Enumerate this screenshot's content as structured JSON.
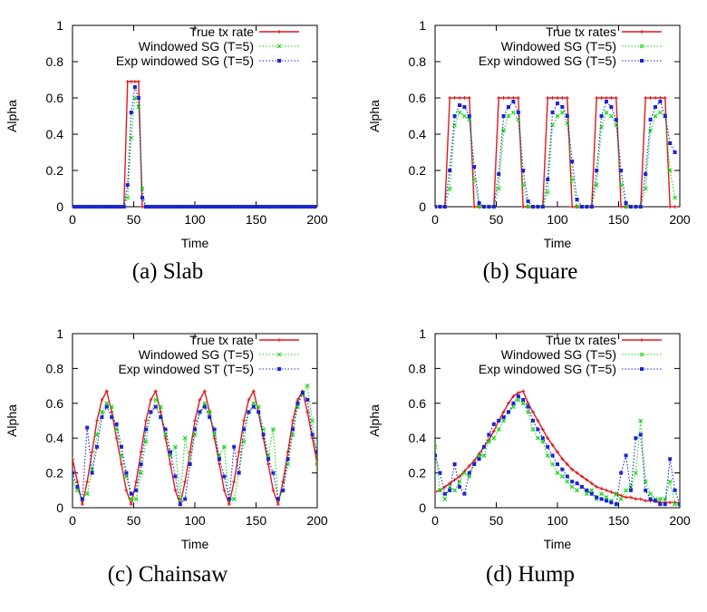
{
  "figure": {
    "captions": [
      "(a) Slab",
      "(b) Square",
      "(c) Chainsaw",
      "(d) Hump"
    ]
  },
  "colors": {
    "true_rate": "#e0181c",
    "windowed_sg": "#11d811",
    "exp_windowed": "#1a24d6"
  },
  "chart_data": [
    {
      "type": "line",
      "caption": "(a) Slab",
      "xlabel": "Time",
      "ylabel": "Alpha",
      "xlim": [
        0,
        200
      ],
      "ylim": [
        0,
        1
      ],
      "xticks": [
        0,
        50,
        100,
        150,
        200
      ],
      "yticks": [
        0,
        0.2,
        0.4,
        0.6,
        0.8,
        1
      ],
      "grid": false,
      "legend_position": "top-right",
      "x": [
        0,
        3,
        6,
        9,
        12,
        15,
        18,
        21,
        24,
        27,
        30,
        33,
        36,
        39,
        42,
        45,
        48,
        51,
        54,
        57,
        60,
        63,
        66,
        69,
        72,
        75,
        78,
        81,
        84,
        87,
        90,
        93,
        96,
        99,
        102,
        105,
        108,
        111,
        114,
        117,
        120,
        123,
        126,
        129,
        132,
        135,
        138,
        141,
        144,
        147,
        150,
        153,
        156,
        159,
        162,
        165,
        168,
        171,
        174,
        177,
        180,
        183,
        186,
        189,
        192,
        195,
        198
      ],
      "series": [
        {
          "name": "True tx rate",
          "marker": "+",
          "style": "solid",
          "values": [
            0,
            0,
            0,
            0,
            0,
            0,
            0,
            0,
            0,
            0,
            0,
            0,
            0,
            0,
            0,
            0.69,
            0.69,
            0.69,
            0.69,
            0,
            0,
            0,
            0,
            0,
            0,
            0,
            0,
            0,
            0,
            0,
            0,
            0,
            0,
            0,
            0,
            0,
            0,
            0,
            0,
            0,
            0,
            0,
            0,
            0,
            0,
            0,
            0,
            0,
            0,
            0,
            0,
            0,
            0,
            0,
            0,
            0,
            0,
            0,
            0,
            0,
            0,
            0,
            0,
            0,
            0,
            0,
            0
          ]
        },
        {
          "name": "Windowed SG (T=5)",
          "marker": "x",
          "style": "dotted",
          "values": [
            0,
            0,
            0,
            0,
            0,
            0,
            0,
            0,
            0,
            0,
            0,
            0,
            0,
            0,
            0,
            0.05,
            0.38,
            0.6,
            0.55,
            0.1,
            0,
            0,
            0,
            0,
            0,
            0,
            0,
            0,
            0,
            0,
            0,
            0,
            0,
            0,
            0,
            0,
            0,
            0,
            0,
            0,
            0,
            0,
            0,
            0,
            0,
            0,
            0,
            0,
            0,
            0,
            0,
            0,
            0,
            0,
            0,
            0,
            0,
            0,
            0,
            0,
            0,
            0,
            0,
            0,
            0,
            0,
            0
          ]
        },
        {
          "name": "Exp windowed SG (T=5)",
          "marker": "square",
          "style": "dotted",
          "values": [
            0,
            0,
            0,
            0,
            0,
            0,
            0,
            0,
            0,
            0,
            0,
            0,
            0,
            0,
            0,
            0.12,
            0.52,
            0.66,
            0.6,
            0.05,
            0,
            0,
            0,
            0,
            0,
            0,
            0,
            0,
            0,
            0,
            0,
            0,
            0,
            0,
            0,
            0,
            0,
            0,
            0,
            0,
            0,
            0,
            0,
            0,
            0,
            0,
            0,
            0,
            0,
            0,
            0,
            0,
            0,
            0,
            0,
            0,
            0,
            0,
            0,
            0,
            0,
            0,
            0,
            0,
            0,
            0,
            0
          ]
        }
      ]
    },
    {
      "type": "line",
      "caption": "(b) Square",
      "xlabel": "Time",
      "ylabel": "Alpha",
      "xlim": [
        0,
        200
      ],
      "ylim": [
        0,
        1
      ],
      "xticks": [
        0,
        50,
        100,
        150,
        200
      ],
      "yticks": [
        0,
        0.2,
        0.4,
        0.6,
        0.8,
        1
      ],
      "grid": false,
      "legend_position": "top-right",
      "x": [
        0,
        4,
        8,
        12,
        16,
        20,
        24,
        28,
        32,
        36,
        40,
        44,
        48,
        52,
        56,
        60,
        64,
        68,
        72,
        76,
        80,
        84,
        88,
        92,
        96,
        100,
        104,
        108,
        112,
        116,
        120,
        124,
        128,
        132,
        136,
        140,
        144,
        148,
        152,
        156,
        160,
        164,
        168,
        172,
        176,
        180,
        184,
        188,
        192,
        196
      ],
      "series": [
        {
          "name": "True tx rates",
          "marker": "+",
          "style": "solid",
          "values": [
            0,
            0,
            0,
            0.6,
            0.6,
            0.6,
            0.6,
            0.6,
            0,
            0,
            0,
            0,
            0,
            0.6,
            0.6,
            0.6,
            0.6,
            0.6,
            0,
            0,
            0,
            0,
            0,
            0.6,
            0.6,
            0.6,
            0.6,
            0.6,
            0,
            0,
            0,
            0,
            0,
            0.6,
            0.6,
            0.6,
            0.6,
            0.6,
            0,
            0,
            0,
            0,
            0,
            0.6,
            0.6,
            0.6,
            0.6,
            0.6,
            0,
            0
          ]
        },
        {
          "name": "Windowed SG (T=5)",
          "marker": "x",
          "style": "dotted",
          "values": [
            0,
            0,
            0,
            0.1,
            0.45,
            0.52,
            0.5,
            0.48,
            0.15,
            0,
            0,
            0,
            0,
            0.1,
            0.42,
            0.5,
            0.52,
            0.48,
            0.12,
            0,
            0,
            0,
            0,
            0.08,
            0.45,
            0.5,
            0.52,
            0.46,
            0.15,
            0,
            0,
            0,
            0,
            0.12,
            0.44,
            0.52,
            0.5,
            0.45,
            0.12,
            0,
            0,
            0,
            0,
            0.1,
            0.42,
            0.5,
            0.52,
            0.5,
            0.2,
            0.05
          ]
        },
        {
          "name": "Exp windowed SG (T=5)",
          "marker": "square",
          "style": "dotted",
          "values": [
            0,
            0,
            0,
            0.2,
            0.5,
            0.56,
            0.55,
            0.5,
            0.22,
            0.02,
            0,
            0,
            0,
            0.18,
            0.5,
            0.55,
            0.58,
            0.52,
            0.2,
            0.03,
            0,
            0,
            0,
            0.15,
            0.52,
            0.57,
            0.55,
            0.5,
            0.25,
            0.04,
            0,
            0,
            0,
            0.2,
            0.5,
            0.58,
            0.55,
            0.48,
            0.2,
            0.02,
            0,
            0,
            0,
            0.18,
            0.48,
            0.55,
            0.58,
            0.5,
            0.35,
            0.3
          ]
        }
      ]
    },
    {
      "type": "line",
      "caption": "(c) Chainsaw",
      "xlabel": "Time",
      "ylabel": "Alpha",
      "xlim": [
        0,
        200
      ],
      "ylim": [
        0,
        1
      ],
      "xticks": [
        0,
        50,
        100,
        150,
        200
      ],
      "yticks": [
        0,
        0.2,
        0.4,
        0.6,
        0.8,
        1
      ],
      "grid": false,
      "legend_position": "top-right",
      "x": [
        0,
        4,
        8,
        12,
        16,
        20,
        24,
        28,
        32,
        36,
        40,
        44,
        48,
        52,
        56,
        60,
        64,
        68,
        72,
        76,
        80,
        84,
        88,
        92,
        96,
        100,
        104,
        108,
        112,
        116,
        120,
        124,
        128,
        132,
        136,
        140,
        144,
        148,
        152,
        156,
        160,
        164,
        168,
        172,
        176,
        180,
        184,
        188,
        192,
        196,
        200
      ],
      "series": [
        {
          "name": "True tx rate",
          "marker": "+",
          "style": "solid",
          "values": [
            0.28,
            0.15,
            0.02,
            0.15,
            0.32,
            0.5,
            0.62,
            0.67,
            0.55,
            0.4,
            0.25,
            0.1,
            0.02,
            0.15,
            0.32,
            0.5,
            0.62,
            0.67,
            0.55,
            0.4,
            0.25,
            0.1,
            0.02,
            0.15,
            0.32,
            0.5,
            0.62,
            0.67,
            0.55,
            0.4,
            0.25,
            0.1,
            0.02,
            0.15,
            0.32,
            0.5,
            0.62,
            0.67,
            0.55,
            0.4,
            0.25,
            0.1,
            0.02,
            0.15,
            0.32,
            0.5,
            0.62,
            0.67,
            0.55,
            0.4,
            0.25
          ]
        },
        {
          "name": "Windowed SG (T=5)",
          "marker": "x",
          "style": "dotted",
          "values": [
            0.15,
            0.1,
            0.05,
            0.08,
            0.22,
            0.42,
            0.55,
            0.6,
            0.58,
            0.45,
            0.3,
            0.18,
            0.05,
            0.05,
            0.2,
            0.38,
            0.55,
            0.62,
            0.58,
            0.42,
            0.3,
            0.35,
            0.05,
            0.4,
            0.25,
            0.42,
            0.55,
            0.6,
            0.55,
            0.42,
            0.3,
            0.35,
            0.05,
            0.05,
            0.2,
            0.38,
            0.55,
            0.6,
            0.58,
            0.45,
            0.3,
            0.45,
            0.05,
            0.1,
            0.25,
            0.42,
            0.58,
            0.65,
            0.7,
            0.5,
            0.25
          ]
        },
        {
          "name": "Exp windowed ST (T=5)",
          "marker": "square",
          "style": "dotted",
          "values": [
            0.2,
            0.12,
            0.05,
            0.46,
            0.2,
            0.35,
            0.52,
            0.58,
            0.52,
            0.48,
            0.35,
            0.2,
            0.08,
            0.1,
            0.25,
            0.45,
            0.55,
            0.58,
            0.52,
            0.45,
            0.32,
            0.18,
            0.02,
            0.05,
            0.25,
            0.45,
            0.55,
            0.58,
            0.52,
            0.45,
            0.28,
            0.18,
            0.05,
            0.35,
            0.2,
            0.45,
            0.55,
            0.58,
            0.55,
            0.42,
            0.28,
            0.2,
            0.05,
            0.1,
            0.28,
            0.45,
            0.6,
            0.66,
            0.62,
            0.42,
            0.32
          ]
        }
      ]
    },
    {
      "type": "line",
      "caption": "(d) Hump",
      "xlabel": "Time",
      "ylabel": "Alpha",
      "xlim": [
        0,
        200
      ],
      "ylim": [
        0,
        1
      ],
      "xticks": [
        0,
        50,
        100,
        150,
        200
      ],
      "yticks": [
        0,
        0.2,
        0.4,
        0.6,
        0.8,
        1
      ],
      "grid": false,
      "legend_position": "top-right",
      "x": [
        0,
        4,
        8,
        12,
        16,
        20,
        24,
        28,
        32,
        36,
        40,
        44,
        48,
        52,
        56,
        60,
        64,
        68,
        72,
        76,
        80,
        84,
        88,
        92,
        96,
        100,
        104,
        108,
        112,
        116,
        120,
        124,
        128,
        132,
        136,
        140,
        144,
        148,
        152,
        156,
        160,
        164,
        168,
        172,
        176,
        180,
        184,
        188,
        192,
        196,
        200
      ],
      "series": [
        {
          "name": "True tx rates",
          "marker": "+",
          "style": "solid",
          "values": [
            0.09,
            0.1,
            0.12,
            0.14,
            0.16,
            0.18,
            0.21,
            0.24,
            0.27,
            0.31,
            0.35,
            0.39,
            0.44,
            0.5,
            0.55,
            0.6,
            0.64,
            0.66,
            0.67,
            0.6,
            0.55,
            0.5,
            0.45,
            0.4,
            0.36,
            0.32,
            0.28,
            0.25,
            0.22,
            0.2,
            0.18,
            0.16,
            0.14,
            0.12,
            0.11,
            0.1,
            0.09,
            0.08,
            0.07,
            0.06,
            0.06,
            0.05,
            0.05,
            0.04,
            0.04,
            0.04,
            0.03,
            0.03,
            0.03,
            0.03,
            0.03
          ]
        },
        {
          "name": "Windowed SG (T=5)",
          "marker": "x",
          "style": "dotted",
          "values": [
            0.35,
            0.1,
            0.05,
            0.12,
            0.1,
            0.15,
            0.2,
            0.18,
            0.25,
            0.3,
            0.3,
            0.38,
            0.4,
            0.45,
            0.5,
            0.55,
            0.58,
            0.62,
            0.6,
            0.55,
            0.45,
            0.4,
            0.38,
            0.3,
            0.25,
            0.2,
            0.18,
            0.15,
            0.12,
            0.1,
            0.12,
            0.08,
            0.1,
            0.05,
            0.08,
            0.06,
            0.04,
            0.08,
            0.05,
            0.1,
            0.12,
            0.2,
            0.5,
            0.15,
            0.08,
            0.05,
            0.05,
            0.05,
            0.15,
            0.02,
            0.02
          ]
        },
        {
          "name": "Exp windowed SG (T=5)",
          "marker": "square",
          "style": "dotted",
          "values": [
            0.3,
            0.2,
            0.08,
            0.1,
            0.25,
            0.12,
            0.08,
            0.2,
            0.25,
            0.28,
            0.35,
            0.42,
            0.48,
            0.5,
            0.52,
            0.55,
            0.6,
            0.64,
            0.62,
            0.58,
            0.5,
            0.45,
            0.4,
            0.35,
            0.3,
            0.25,
            0.22,
            0.18,
            0.15,
            0.14,
            0.12,
            0.1,
            0.08,
            0.06,
            0.05,
            0.04,
            0.03,
            0.02,
            0.2,
            0.3,
            0.1,
            0.4,
            0.42,
            0.1,
            0.05,
            0.04,
            0.02,
            0.02,
            0.28,
            0.1,
            0.02
          ]
        }
      ]
    }
  ]
}
